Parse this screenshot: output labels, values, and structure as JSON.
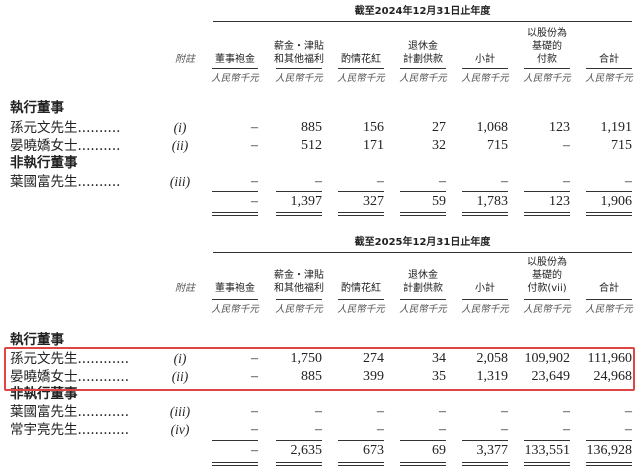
{
  "highlight_color": "#e04545",
  "note_header": "附註",
  "unit": "人民幣千元",
  "sections": [
    {
      "title": "截至2024年12月31日止年度",
      "columns": [
        [
          "董事袍金"
        ],
        [
          "薪金・津貼",
          "和其他福利"
        ],
        [
          "酌情花紅"
        ],
        [
          "退休金",
          "計劃供款"
        ],
        [
          "小計"
        ],
        [
          "以股份為",
          "基礎的",
          "付款"
        ],
        [
          "合計"
        ]
      ],
      "groups": [
        {
          "label": "執行董事",
          "rows": [
            {
              "name": "孫元文先生..........",
              "note": "(i)",
              "values": [
                "–",
                "885",
                "156",
                "27",
                "1,068",
                "123",
                "1,191"
              ]
            },
            {
              "name": "晏曉嬌女士..........",
              "note": "(ii)",
              "values": [
                "–",
                "512",
                "171",
                "32",
                "715",
                "–",
                "715"
              ]
            }
          ]
        },
        {
          "label": "非執行董事",
          "rows": [
            {
              "name": "葉國富先生..........",
              "note": "(iii)",
              "values": [
                "–",
                "–",
                "–",
                "–",
                "–",
                "–",
                "–"
              ]
            }
          ]
        }
      ],
      "total": [
        "–",
        "1,397",
        "327",
        "59",
        "1,783",
        "123",
        "1,906"
      ]
    },
    {
      "title": "截至2025年12月31日止年度",
      "columns": [
        [
          "董事袍金"
        ],
        [
          "薪金・津貼",
          "和其他福利"
        ],
        [
          "酌情花紅"
        ],
        [
          "退休金",
          "計劃供款"
        ],
        [
          "小計"
        ],
        [
          "以股份為",
          "基礎的",
          "付款(vii)"
        ],
        [
          "合計"
        ]
      ],
      "groups": [
        {
          "label": "執行董事",
          "rows": [
            {
              "name": "孫元文先生............",
              "note": "(i)",
              "values": [
                "–",
                "1,750",
                "274",
                "34",
                "2,058",
                "109,902",
                "111,960"
              ]
            },
            {
              "name": "晏曉嬌女士............",
              "note": "(ii)",
              "values": [
                "–",
                "885",
                "399",
                "35",
                "1,319",
                "23,649",
                "24,968"
              ]
            }
          ]
        },
        {
          "label": "非執行董事",
          "rows": [
            {
              "name": "葉國富先生............",
              "note": "(iii)",
              "values": [
                "–",
                "–",
                "–",
                "–",
                "–",
                "–",
                "–"
              ]
            },
            {
              "name": "常宇亮先生............",
              "note": "(iv)",
              "values": [
                "–",
                "–",
                "–",
                "–",
                "–",
                "–",
                "–"
              ]
            }
          ]
        }
      ],
      "total": [
        "–",
        "2,635",
        "673",
        "69",
        "3,377",
        "133,551",
        "136,928"
      ]
    }
  ]
}
